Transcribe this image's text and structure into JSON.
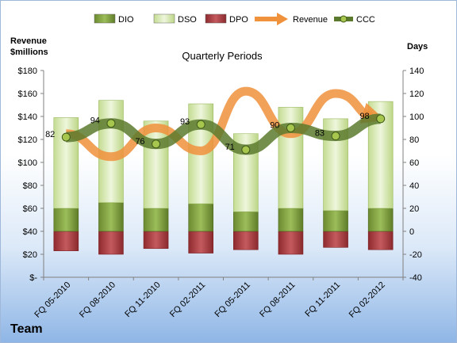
{
  "legend": [
    {
      "label": "DIO",
      "type": "bar",
      "color": "#7a9a3a"
    },
    {
      "label": "DSO",
      "type": "bar",
      "color": "#d6e6b0"
    },
    {
      "label": "DPO",
      "type": "bar",
      "color": "#a23a3e"
    },
    {
      "label": "Revenue",
      "type": "arrow",
      "color": "#f0913c"
    },
    {
      "label": "CCC",
      "type": "line",
      "color": "#5c7a2e"
    }
  ],
  "left_unit_line1": "Revenue",
  "left_unit_line2": "$millions",
  "right_unit": "Days",
  "footer": "Team",
  "chart_data": {
    "type": "bar",
    "title": "Quarterly Periods",
    "categories": [
      "FQ 05-2010",
      "FQ 08-2010",
      "FQ 11-2010",
      "FQ 02-2011",
      "FQ 05-2011",
      "FQ 08-2011",
      "FQ 11-2011",
      "FQ 02-2012"
    ],
    "left_axis": {
      "min": 0,
      "max": 180,
      "step": 20,
      "tick_labels": [
        "$-",
        "$20",
        "$40",
        "$60",
        "$80",
        "$100",
        "$120",
        "$140",
        "$160",
        "$180"
      ]
    },
    "right_axis": {
      "min": -40,
      "max": 140,
      "step": 20,
      "tick_labels": [
        "-40",
        "-20",
        "0",
        "20",
        "40",
        "60",
        "80",
        "100",
        "120",
        "140"
      ]
    },
    "series": [
      {
        "name": "DIO",
        "axis": "right",
        "values": [
          20,
          25,
          20,
          24,
          17,
          20,
          18,
          20
        ]
      },
      {
        "name": "DSO",
        "axis": "right",
        "values": [
          79,
          89,
          76,
          87,
          68,
          88,
          80,
          93
        ]
      },
      {
        "name": "DPO",
        "axis": "right",
        "values": [
          -17,
          -20,
          -15,
          -19,
          -16,
          -20,
          -14,
          -16
        ]
      },
      {
        "name": "Revenue",
        "axis": "left",
        "values": [
          125,
          105,
          130,
          110,
          162,
          125,
          160,
          138
        ]
      },
      {
        "name": "CCC",
        "axis": "right",
        "values": [
          82,
          94,
          76,
          93,
          71,
          90,
          83,
          98
        ],
        "data_labels": [
          "82",
          "94",
          "76",
          "93",
          "71",
          "90",
          "83",
          "98"
        ]
      }
    ],
    "grid": false,
    "legend_position": "top"
  }
}
